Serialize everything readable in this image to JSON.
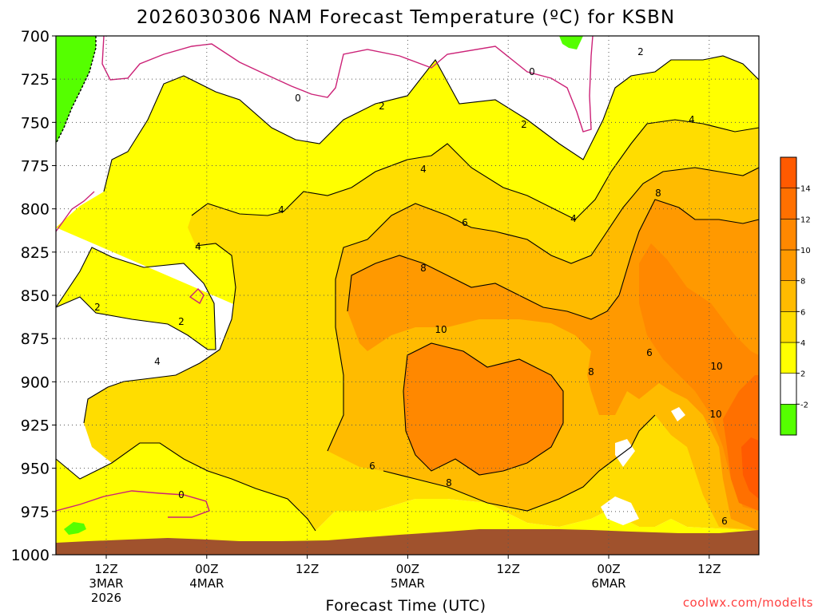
{
  "chart_data": {
    "type": "heatmap",
    "title": "2026030306 NAM Forecast Temperature (ºC) for KSBN",
    "xlabel": "Forecast Time (UTC)",
    "credit": "coolwx.com/modelts",
    "y_axis": {
      "ticks": [
        "700",
        "725",
        "750",
        "775",
        "800",
        "825",
        "850",
        "875",
        "900",
        "925",
        "950",
        "975",
        "1000"
      ],
      "ylim": [
        700,
        1000
      ],
      "inverted": true
    },
    "x_axis": {
      "ticks": [
        {
          "line1": "12Z",
          "line2": "3MAR",
          "line3": "2026"
        },
        {
          "line1": "00Z",
          "line2": "4MAR",
          "line3": ""
        },
        {
          "line1": "12Z",
          "line2": "",
          "line3": ""
        },
        {
          "line1": "00Z",
          "line2": "5MAR",
          "line3": ""
        },
        {
          "line1": "12Z",
          "line2": "",
          "line3": ""
        },
        {
          "line1": "00Z",
          "line2": "6MAR",
          "line3": ""
        },
        {
          "line1": "12Z",
          "line2": "",
          "line3": ""
        }
      ]
    },
    "grid": true,
    "colorbar": {
      "position": "right",
      "levels": [
        "-2",
        "2",
        "4",
        "6",
        "8",
        "10",
        "12",
        "14"
      ],
      "bands": [
        {
          "from": -4,
          "to": -2,
          "color": "#55ff00"
        },
        {
          "from": -2,
          "to": 2,
          "color": "#ffffff"
        },
        {
          "from": 2,
          "to": 4,
          "color": "#ffff00"
        },
        {
          "from": 4,
          "to": 6,
          "color": "#ffdd00"
        },
        {
          "from": 6,
          "to": 8,
          "color": "#ffbb00"
        },
        {
          "from": 8,
          "to": 10,
          "color": "#ff9900"
        },
        {
          "from": 10,
          "to": 12,
          "color": "#ff8800"
        },
        {
          "from": 12,
          "to": 14,
          "color": "#ff7000"
        },
        {
          "from": 14,
          "to": 16,
          "color": "#ff5a00"
        }
      ]
    },
    "contour_labels": [
      "0",
      "0",
      "0",
      "2",
      "2",
      "2",
      "2",
      "2",
      "4",
      "4",
      "4",
      "4",
      "4",
      "4",
      "6",
      "6",
      "6",
      "6",
      "8",
      "8",
      "8",
      "8",
      "10",
      "10",
      "10"
    ],
    "ground_color": "#a0522d"
  }
}
